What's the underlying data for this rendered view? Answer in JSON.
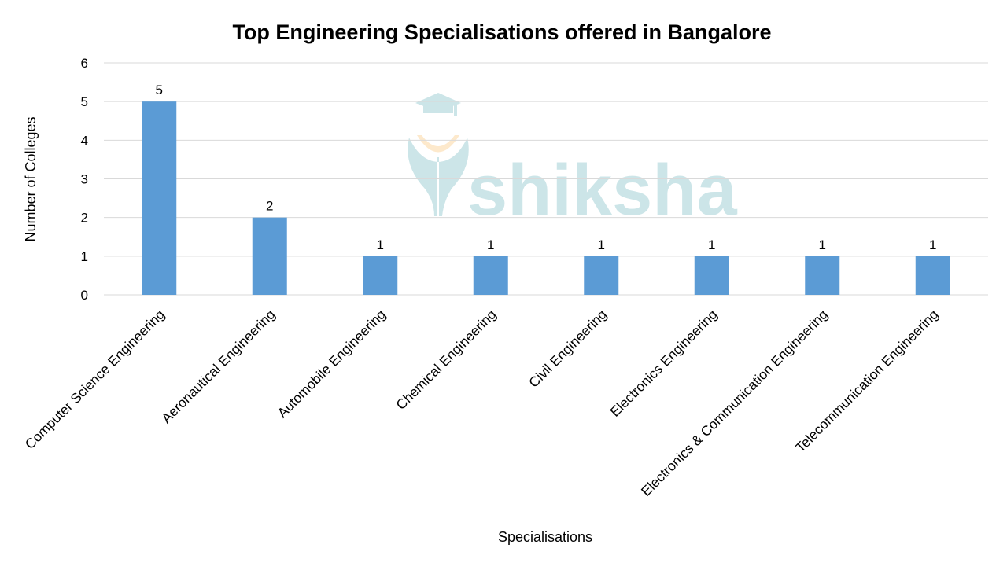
{
  "chart_data": {
    "type": "bar",
    "title": "Top Engineering Specialisations offered in Bangalore",
    "xlabel": "Specialisations",
    "ylabel": "Number of Colleges",
    "categories": [
      "Computer Science Engineering",
      "Aeronautical Engineering",
      "Automobile Engineering",
      "Chemical Engineering",
      "Civil Engineering",
      "Electronics Engineering",
      "Electronics & Communication Engineering",
      "Telecommunication Engineering"
    ],
    "values": [
      5,
      2,
      1,
      1,
      1,
      1,
      1,
      1
    ],
    "ylim": [
      0,
      6
    ],
    "yticks": [
      0,
      1,
      2,
      3,
      4,
      5,
      6
    ],
    "grid": true,
    "data_labels": true,
    "bar_color": "#5b9bd5"
  },
  "watermark": {
    "text": "shiksha",
    "color": "#cce5e8",
    "accent_color": "#fde9cc"
  }
}
